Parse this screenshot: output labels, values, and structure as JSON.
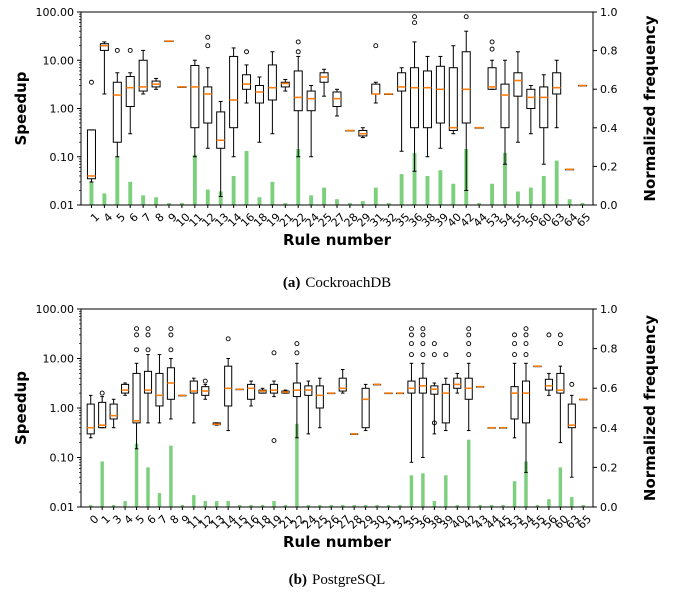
{
  "chart_data": [
    {
      "type": "box",
      "caption_label": "(a)",
      "caption_text": "CockroachDB",
      "xlabel": "Rule number",
      "ylabel": "Speedup",
      "ylabel_right": "Normalized frequency",
      "yscale": "log",
      "ylim": [
        0.01,
        100
      ],
      "ylim_right": [
        0,
        1
      ],
      "yticks": [
        "0.01",
        "0.10",
        "1.00",
        "10.00",
        "100.00"
      ],
      "yticks_right": [
        "0.0",
        "0.2",
        "0.4",
        "0.6",
        "0.8",
        "1.0"
      ],
      "series": [
        {
          "name": "Speedup",
          "kind": "box"
        },
        {
          "name": "Normalized frequency",
          "kind": "bar",
          "color": "#7ccf7c"
        }
      ],
      "categories": [
        "1",
        "4",
        "5",
        "6",
        "7",
        "8",
        "9",
        "10",
        "11",
        "12",
        "13",
        "14",
        "16",
        "18",
        "19",
        "21",
        "22",
        "24",
        "25",
        "27",
        "28",
        "29",
        "31",
        "32",
        "35",
        "36",
        "38",
        "39",
        "40",
        "42",
        "44",
        "53",
        "54",
        "55",
        "56",
        "60",
        "63",
        "64",
        "65"
      ],
      "boxes": [
        {
          "min": 0.03,
          "q1": 0.035,
          "med": 0.04,
          "q3": 0.36,
          "max": 0.36,
          "fliers": [
            3.5
          ]
        },
        {
          "min": 2,
          "q1": 16,
          "med": 20,
          "q3": 22,
          "max": 24,
          "fliers": []
        },
        {
          "min": 0.1,
          "q1": 0.2,
          "med": 1.9,
          "q3": 3.5,
          "max": 5.5,
          "fliers": [
            16
          ]
        },
        {
          "min": 0.3,
          "q1": 1.1,
          "med": 2.7,
          "q3": 4.6,
          "max": 5.5,
          "fliers": [
            16
          ]
        },
        {
          "min": 2,
          "q1": 2.3,
          "med": 2.8,
          "q3": 10,
          "max": 16,
          "fliers": []
        },
        {
          "min": 2.5,
          "q1": 2.8,
          "med": 3.2,
          "q3": 3.7,
          "max": 4.2,
          "fliers": []
        },
        {
          "min": 25,
          "q1": 25,
          "med": 25,
          "q3": 25,
          "max": 25,
          "fliers": []
        },
        {
          "min": 2.8,
          "q1": 2.8,
          "med": 2.8,
          "q3": 2.8,
          "max": 2.8,
          "fliers": []
        },
        {
          "min": 0.1,
          "q1": 0.4,
          "med": 2.8,
          "q3": 7.8,
          "max": 10,
          "fliers": []
        },
        {
          "min": 0.15,
          "q1": 0.5,
          "med": 2,
          "q3": 2.8,
          "max": 7,
          "fliers": [
            20,
            30
          ]
        },
        {
          "min": 0.015,
          "q1": 0.15,
          "med": 0.22,
          "q3": 0.85,
          "max": 1.4,
          "fliers": []
        },
        {
          "min": 0.1,
          "q1": 0.4,
          "med": 1.5,
          "q3": 12,
          "max": 18,
          "fliers": []
        },
        {
          "min": 1.3,
          "q1": 2.5,
          "med": 3.2,
          "q3": 5,
          "max": 8,
          "fliers": [
            15
          ]
        },
        {
          "min": 0.2,
          "q1": 1.3,
          "med": 2.2,
          "q3": 3,
          "max": 4.5,
          "fliers": []
        },
        {
          "min": 0.3,
          "q1": 1.5,
          "med": 2.7,
          "q3": 8,
          "max": 15,
          "fliers": []
        },
        {
          "min": 2.3,
          "q1": 2.8,
          "med": 3.3,
          "q3": 3.5,
          "max": 4,
          "fliers": []
        },
        {
          "min": 0.1,
          "q1": 0.9,
          "med": 1.7,
          "q3": 6,
          "max": 12,
          "fliers": [
            15,
            24
          ]
        },
        {
          "min": 0.1,
          "q1": 0.9,
          "med": 1.6,
          "q3": 2.3,
          "max": 3,
          "fliers": []
        },
        {
          "min": 1.8,
          "q1": 3.5,
          "med": 4.5,
          "q3": 5.5,
          "max": 6.5,
          "fliers": []
        },
        {
          "min": 0.7,
          "q1": 1.1,
          "med": 1.6,
          "q3": 2.2,
          "max": 2.5,
          "fliers": []
        },
        {
          "min": 0.35,
          "q1": 0.35,
          "med": 0.35,
          "q3": 0.35,
          "max": 0.35,
          "fliers": []
        },
        {
          "min": 0.25,
          "q1": 0.27,
          "med": 0.3,
          "q3": 0.35,
          "max": 0.4,
          "fliers": []
        },
        {
          "min": 1.3,
          "q1": 2,
          "med": 2,
          "q3": 3.2,
          "max": 3.5,
          "fliers": [
            20
          ]
        },
        {
          "min": 2,
          "q1": 2,
          "med": 2,
          "q3": 2,
          "max": 2,
          "fliers": []
        },
        {
          "min": 0.13,
          "q1": 2.3,
          "med": 2.8,
          "q3": 5.5,
          "max": 7,
          "fliers": []
        },
        {
          "min": 0.05,
          "q1": 0.4,
          "med": 2.7,
          "q3": 7,
          "max": 24,
          "fliers": [
            60,
            80
          ]
        },
        {
          "min": 0.1,
          "q1": 0.4,
          "med": 2.7,
          "q3": 6,
          "max": 12,
          "fliers": []
        },
        {
          "min": 0.15,
          "q1": 0.5,
          "med": 2.5,
          "q3": 7.5,
          "max": 12,
          "fliers": []
        },
        {
          "min": 0.3,
          "q1": 0.35,
          "med": 0.4,
          "q3": 7,
          "max": 20,
          "fliers": []
        },
        {
          "min": 0.02,
          "q1": 0.5,
          "med": 2.5,
          "q3": 15,
          "max": 40,
          "fliers": [
            80
          ]
        },
        {
          "min": 0.4,
          "q1": 0.4,
          "med": 0.4,
          "q3": 0.4,
          "max": 0.4,
          "fliers": []
        },
        {
          "min": 2.5,
          "q1": 2.5,
          "med": 2.8,
          "q3": 7,
          "max": 10,
          "fliers": [
            17,
            24
          ]
        },
        {
          "min": 0.07,
          "q1": 0.4,
          "med": 1.9,
          "q3": 3.2,
          "max": 10,
          "fliers": []
        },
        {
          "min": 0.2,
          "q1": 1.8,
          "med": 3.8,
          "q3": 5.5,
          "max": 15,
          "fliers": []
        },
        {
          "min": 0.3,
          "q1": 1,
          "med": 1.7,
          "q3": 2.5,
          "max": 3,
          "fliers": []
        },
        {
          "min": 0.07,
          "q1": 0.4,
          "med": 1.7,
          "q3": 2.8,
          "max": 5,
          "fliers": []
        },
        {
          "min": 0.4,
          "q1": 2,
          "med": 2.7,
          "q3": 5.5,
          "max": 10,
          "fliers": []
        },
        {
          "min": 0.055,
          "q1": 0.055,
          "med": 0.055,
          "q3": 0.055,
          "max": 0.055,
          "fliers": []
        },
        {
          "min": 3,
          "q1": 3,
          "med": 3,
          "q3": 3,
          "max": 3,
          "fliers": []
        }
      ],
      "frequency": [
        0.12,
        0.06,
        0.25,
        0.12,
        0.05,
        0.04,
        0.01,
        0.01,
        0.26,
        0.08,
        0.07,
        0.15,
        0.28,
        0.04,
        0.12,
        0.01,
        0.29,
        0.05,
        0.09,
        0.03,
        0.01,
        0.02,
        0.09,
        0.01,
        0.16,
        0.27,
        0.15,
        0.18,
        0.11,
        0.29,
        0.01,
        0.11,
        0.27,
        0.07,
        0.09,
        0.15,
        0.23,
        0.03,
        0.01
      ]
    },
    {
      "type": "box",
      "caption_label": "(b)",
      "caption_text": "PostgreSQL",
      "xlabel": "Rule number",
      "ylabel": "Speedup",
      "ylabel_right": "Normalized frequency",
      "yscale": "log",
      "ylim": [
        0.01,
        100
      ],
      "ylim_right": [
        0,
        1
      ],
      "yticks": [
        "0.01",
        "0.10",
        "1.00",
        "10.00",
        "100.00"
      ],
      "yticks_right": [
        "0.0",
        "0.2",
        "0.4",
        "0.6",
        "0.8",
        "1.0"
      ],
      "series": [
        {
          "name": "Speedup",
          "kind": "box"
        },
        {
          "name": "Normalized frequency",
          "kind": "bar",
          "color": "#7ccf7c"
        }
      ],
      "categories": [
        "0",
        "1",
        "3",
        "4",
        "5",
        "6",
        "7",
        "8",
        "9",
        "11",
        "12",
        "13",
        "14",
        "15",
        "16",
        "18",
        "19",
        "21",
        "22",
        "24",
        "25",
        "26",
        "27",
        "28",
        "29",
        "30",
        "31",
        "32",
        "35",
        "36",
        "38",
        "39",
        "40",
        "42",
        "43",
        "44",
        "45",
        "53",
        "54",
        "55",
        "56",
        "60",
        "63",
        "65"
      ],
      "boxes": [
        {
          "min": 0.25,
          "q1": 0.3,
          "med": 0.4,
          "q3": 1.2,
          "max": 1.8,
          "fliers": []
        },
        {
          "min": 0.4,
          "q1": 0.4,
          "med": 0.45,
          "q3": 1.3,
          "max": 1.7,
          "fliers": [
            2
          ]
        },
        {
          "min": 0.4,
          "q1": 0.6,
          "med": 0.7,
          "q3": 1.2,
          "max": 1.5,
          "fliers": []
        },
        {
          "min": 1.8,
          "q1": 2,
          "med": 2.3,
          "q3": 3,
          "max": 3.2,
          "fliers": []
        },
        {
          "min": 0.15,
          "q1": 0.5,
          "med": 0.55,
          "q3": 5,
          "max": 8,
          "fliers": [
            15,
            30,
            40
          ]
        },
        {
          "min": 0.5,
          "q1": 2,
          "med": 2.3,
          "q3": 5.5,
          "max": 12,
          "fliers": [
            15,
            30,
            40
          ]
        },
        {
          "min": 0.5,
          "q1": 1.1,
          "med": 1.8,
          "q3": 5,
          "max": 12,
          "fliers": []
        },
        {
          "min": 0.6,
          "q1": 1.5,
          "med": 3.2,
          "q3": 6.5,
          "max": 10,
          "fliers": [
            15,
            30,
            40
          ]
        },
        {
          "min": 1.8,
          "q1": 1.8,
          "med": 1.8,
          "q3": 1.8,
          "max": 1.8,
          "fliers": []
        },
        {
          "min": 0.5,
          "q1": 2,
          "med": 2.2,
          "q3": 3.5,
          "max": 4,
          "fliers": []
        },
        {
          "min": 1.5,
          "q1": 1.8,
          "med": 2.2,
          "q3": 2.7,
          "max": 3,
          "fliers": [
            3.5
          ]
        },
        {
          "min": 0.45,
          "q1": 0.46,
          "med": 0.47,
          "q3": 0.5,
          "max": 0.5,
          "fliers": []
        },
        {
          "min": 0.35,
          "q1": 1.1,
          "med": 2.5,
          "q3": 7,
          "max": 10,
          "fliers": [
            25
          ]
        },
        {
          "min": 2.4,
          "q1": 2.4,
          "med": 2.4,
          "q3": 2.4,
          "max": 2.4,
          "fliers": []
        },
        {
          "min": 1.1,
          "q1": 1.5,
          "med": 2.5,
          "q3": 3,
          "max": 3.5,
          "fliers": []
        },
        {
          "min": 2,
          "q1": 2,
          "med": 2.2,
          "q3": 2.3,
          "max": 2.5,
          "fliers": []
        },
        {
          "min": 1.7,
          "q1": 2,
          "med": 2.3,
          "q3": 3,
          "max": 3.5,
          "fliers": [
            0.22,
            13
          ]
        },
        {
          "min": 2,
          "q1": 2,
          "med": 2.1,
          "q3": 2.2,
          "max": 2.3,
          "fliers": []
        },
        {
          "min": 0.25,
          "q1": 1.7,
          "med": 2.3,
          "q3": 3.2,
          "max": 8,
          "fliers": [
            13,
            20
          ]
        },
        {
          "min": 0.3,
          "q1": 1.8,
          "med": 2.3,
          "q3": 2.8,
          "max": 3.5,
          "fliers": []
        },
        {
          "min": 0.4,
          "q1": 1,
          "med": 1.8,
          "q3": 2.8,
          "max": 4,
          "fliers": []
        },
        {
          "min": 2,
          "q1": 2,
          "med": 2,
          "q3": 2,
          "max": 2,
          "fliers": []
        },
        {
          "min": 2,
          "q1": 2.2,
          "med": 2.5,
          "q3": 4,
          "max": 6,
          "fliers": []
        },
        {
          "min": 0.3,
          "q1": 0.3,
          "med": 0.3,
          "q3": 0.3,
          "max": 0.3,
          "fliers": []
        },
        {
          "min": 0.35,
          "q1": 0.4,
          "med": 1.5,
          "q3": 2.5,
          "max": 3,
          "fliers": []
        },
        {
          "min": 3,
          "q1": 3,
          "med": 3,
          "q3": 3,
          "max": 3,
          "fliers": []
        },
        {
          "min": 2,
          "q1": 2,
          "med": 2,
          "q3": 2,
          "max": 2,
          "fliers": []
        },
        {
          "min": 2,
          "q1": 2,
          "med": 2,
          "q3": 2,
          "max": 2,
          "fliers": []
        },
        {
          "min": 0.08,
          "q1": 2,
          "med": 2.5,
          "q3": 3.5,
          "max": 8,
          "fliers": [
            12,
            20,
            30,
            40
          ]
        },
        {
          "min": 0.1,
          "q1": 2,
          "med": 2.8,
          "q3": 4,
          "max": 8,
          "fliers": [
            12,
            20,
            30,
            40
          ]
        },
        {
          "min": 0.3,
          "q1": 1.9,
          "med": 2.4,
          "q3": 2.8,
          "max": 3.2,
          "fliers": [
            0.5,
            12,
            20
          ]
        },
        {
          "min": 0.35,
          "q1": 0.5,
          "med": 2,
          "q3": 3,
          "max": 4,
          "fliers": [
            12
          ]
        },
        {
          "min": 2,
          "q1": 2.5,
          "med": 3,
          "q3": 4,
          "max": 5,
          "fliers": []
        },
        {
          "min": 0.35,
          "q1": 1.5,
          "med": 2.5,
          "q3": 4,
          "max": 8,
          "fliers": [
            12,
            20,
            30,
            40
          ]
        },
        {
          "min": 2.7,
          "q1": 2.7,
          "med": 2.7,
          "q3": 2.7,
          "max": 2.7,
          "fliers": []
        },
        {
          "min": 0.4,
          "q1": 0.4,
          "med": 0.4,
          "q3": 0.4,
          "max": 0.4,
          "fliers": []
        },
        {
          "min": 0.4,
          "q1": 0.4,
          "med": 0.4,
          "q3": 0.4,
          "max": 0.4,
          "fliers": []
        },
        {
          "min": 0.25,
          "q1": 0.6,
          "med": 2,
          "q3": 2.7,
          "max": 8,
          "fliers": [
            12,
            20,
            30
          ]
        },
        {
          "min": 0.05,
          "q1": 0.5,
          "med": 2,
          "q3": 3.5,
          "max": 8,
          "fliers": [
            12,
            20,
            30,
            40
          ]
        },
        {
          "min": 7,
          "q1": 7,
          "med": 7,
          "q3": 7,
          "max": 7,
          "fliers": []
        },
        {
          "min": 1.8,
          "q1": 2.3,
          "med": 2.8,
          "q3": 3.8,
          "max": 5,
          "fliers": [
            30
          ]
        },
        {
          "min": 0.2,
          "q1": 2,
          "med": 2.3,
          "q3": 5,
          "max": 7,
          "fliers": [
            20,
            30
          ]
        },
        {
          "min": 0.04,
          "q1": 0.4,
          "med": 0.45,
          "q3": 1.2,
          "max": 1.8,
          "fliers": [
            3
          ]
        },
        {
          "min": 1.5,
          "q1": 1.5,
          "med": 1.5,
          "q3": 1.5,
          "max": 1.5,
          "fliers": []
        }
      ],
      "frequency": [
        0.01,
        0.23,
        0.01,
        0.03,
        0.32,
        0.2,
        0.07,
        0.31,
        0.01,
        0.06,
        0.03,
        0.03,
        0.03,
        0.01,
        0.01,
        0.01,
        0.03,
        0.01,
        0.42,
        0.01,
        0.01,
        0.01,
        0.01,
        0.01,
        0.01,
        0.01,
        0.01,
        0.01,
        0.16,
        0.17,
        0.03,
        0.16,
        0.01,
        0.34,
        0.01,
        0.01,
        0.01,
        0.13,
        0.23,
        0.01,
        0.04,
        0.2,
        0.05,
        0.01
      ]
    }
  ]
}
